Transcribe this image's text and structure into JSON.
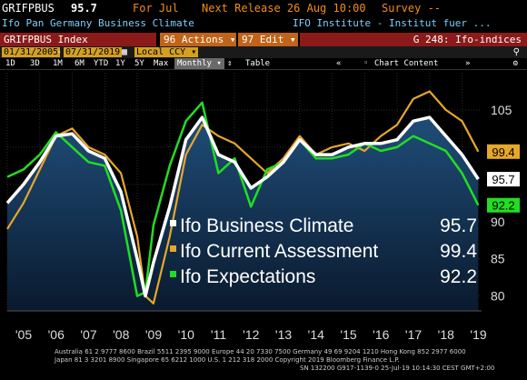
{
  "header": {
    "ticker": "GRIFPBUS",
    "value": "95.7",
    "period": "For Jul",
    "next_release": "Next Release 26 Aug 10:00",
    "survey": "Survey --",
    "title": "Ifo Pan Germany Business Climate",
    "source": "IFO Institute - Institut fuer ..."
  },
  "toolbar": {
    "index_label": "GRIFPBUS Index",
    "actions_label": "96 Actions",
    "edit_label": "97 Edit",
    "page_label": "G 248: Ifo-indices"
  },
  "rangebar": {
    "start_date": "01/31/2005",
    "end_date": "07/31/2019",
    "currency": "Local CCY"
  },
  "controls": {
    "periods": [
      "1D",
      "3D",
      "1M",
      "6M",
      "YTD",
      "1Y",
      "5Y",
      "Max"
    ],
    "frequency": "Monthly",
    "table_label": "Table",
    "chart_content_label": "Chart Content"
  },
  "colors": {
    "business_climate": "#ffffff",
    "current_assessment": "#e6a72a",
    "expectations": "#22dd22",
    "area_top": "#1f4d78",
    "area_bottom": "#0a1a2e",
    "background": "#000000",
    "toolbar_red": "#8b1a1a",
    "toolbar_orange": "#c0641a"
  },
  "footer": {
    "line1": "Australia 61 2 9777 8600 Brazil 5511 2395 9000 Europe 44 20 7330 7500 Germany 49 69 9204 1210 Hong Kong 852 2977 6000",
    "line2": "Japan 81 3 3201 8900        Singapore 65 6212 1000      U.S. 1 212 318 2000        Copyright 2019 Bloomberg Finance L.P.",
    "line3": "SN 132200 G917-1139-0 25-Jul-19 10:14:30 CEST GMT+2:00"
  },
  "chart_data": {
    "type": "line",
    "x": [
      "2005-01",
      "2005-07",
      "2006-01",
      "2006-07",
      "2007-01",
      "2007-07",
      "2008-01",
      "2008-07",
      "2009-01",
      "2009-04",
      "2009-07",
      "2010-01",
      "2010-07",
      "2011-01",
      "2011-07",
      "2012-01",
      "2012-07",
      "2013-01",
      "2013-07",
      "2014-01",
      "2014-07",
      "2015-01",
      "2015-07",
      "2016-01",
      "2016-07",
      "2017-01",
      "2017-07",
      "2018-01",
      "2018-07",
      "2019-01",
      "2019-07"
    ],
    "series": [
      {
        "name": "Ifo Business Climate",
        "last": "95.7",
        "values": [
          92.5,
          95.0,
          98.0,
          101.5,
          101.8,
          99.5,
          98.5,
          94.0,
          85.0,
          80.0,
          84.5,
          92.0,
          101.0,
          104.0,
          99.0,
          98.0,
          94.5,
          96.0,
          98.0,
          101.0,
          99.0,
          99.0,
          100.0,
          100.5,
          100.5,
          101.0,
          103.5,
          104.0,
          101.5,
          99.0,
          95.7
        ]
      },
      {
        "name": "Ifo Current Assessment",
        "last": "99.4",
        "values": [
          89.0,
          92.5,
          97.0,
          101.5,
          102.5,
          100.0,
          99.0,
          96.5,
          88.0,
          80.0,
          79.0,
          88.0,
          99.0,
          103.0,
          101.5,
          100.5,
          98.5,
          96.5,
          98.5,
          101.5,
          99.0,
          100.0,
          100.5,
          99.5,
          101.5,
          103.0,
          106.5,
          107.5,
          105.0,
          103.5,
          99.4
        ]
      },
      {
        "name": "Ifo Expectations",
        "last": "92.2",
        "values": [
          96.0,
          97.0,
          99.0,
          102.0,
          100.0,
          98.0,
          97.5,
          91.5,
          80.0,
          80.5,
          89.5,
          97.5,
          103.5,
          106.0,
          96.5,
          98.5,
          92.0,
          97.0,
          98.0,
          101.0,
          98.5,
          98.5,
          99.0,
          100.5,
          99.5,
          100.0,
          101.5,
          100.5,
          99.5,
          96.5,
          92.2
        ]
      }
    ],
    "y_ticks": [
      80,
      85,
      90,
      95,
      100,
      105
    ],
    "x_tick_labels": [
      "'05",
      "'06",
      "'07",
      "'08",
      "'09",
      "'10",
      "'11",
      "'12",
      "'13",
      "'14",
      "'15",
      "'16",
      "'17",
      "'18",
      "'19"
    ],
    "ylim": [
      78,
      110
    ],
    "grid": true,
    "legend_placement": "bottom-center"
  }
}
